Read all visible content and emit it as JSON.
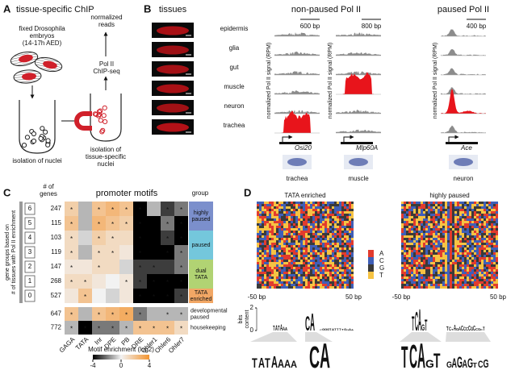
{
  "panelA": {
    "label": "A",
    "title": "tissue-specific ChIP",
    "embryos": [
      "fixed Drosophila",
      "embryos",
      "(14-17h AED)"
    ],
    "reads": [
      "normalized",
      "reads"
    ],
    "chip": [
      "Pol II",
      "ChIP-seq"
    ],
    "nuclei": "isolation of nuclei",
    "tissue_nuclei": [
      "isolation of",
      "tissue-specific",
      "nuclei"
    ]
  },
  "panelB": {
    "label": "B",
    "tissues_title": "tissues",
    "tissues": [
      "epidermis",
      "glia",
      "gut",
      "muscle",
      "neuron",
      "trachea"
    ],
    "headers": [
      "non-paused Pol II",
      "paused Pol II"
    ],
    "y_label": "normalized Pol II signal (RPM)",
    "loci": [
      {
        "scale": "600 bp",
        "gene": "Osi20",
        "tissue": "trachea",
        "paused": false
      },
      {
        "scale": "800 bp",
        "gene": "Mlp60A",
        "tissue": "muscle",
        "paused": false
      },
      {
        "scale": "400 bp",
        "gene": "Ace",
        "tissue": "neuron",
        "paused": true
      }
    ],
    "highlight_color": "#e8141b",
    "track_color": "#8c8c8c"
  },
  "panelC": {
    "label": "C",
    "genes_title": [
      "# of",
      "genes"
    ],
    "title": "promoter motifs",
    "group_title": "group",
    "side_label": [
      "gene groups based on",
      "# of tissues with Pol II enrichment"
    ],
    "columns": [
      "GAGA",
      "TATA",
      "Inr",
      "DPE",
      "PB",
      "DRE",
      "Ohler1",
      "Ohler6",
      "Ohler7"
    ],
    "rows": [
      {
        "tissues": 6,
        "genes": 247,
        "values": [
          1.5,
          -1,
          2,
          2.5,
          2,
          -4,
          -1,
          -3,
          -2
        ],
        "significant": [
          true,
          false,
          true,
          true,
          true,
          true,
          false,
          true,
          true
        ]
      },
      {
        "tissues": 5,
        "genes": 115,
        "values": [
          2,
          -1,
          2.5,
          2,
          1.5,
          -4,
          -4,
          -2,
          -4
        ],
        "significant": [
          true,
          false,
          true,
          true,
          true,
          true,
          false,
          true,
          true
        ]
      },
      {
        "tissues": 4,
        "genes": 103,
        "values": [
          1,
          -0.5,
          1.5,
          1,
          1,
          -4,
          -4,
          -3,
          -4
        ],
        "significant": [
          true,
          false,
          true,
          true,
          false,
          true,
          false,
          true,
          true
        ]
      },
      {
        "tissues": 3,
        "genes": 119,
        "values": [
          1,
          -1,
          1,
          1,
          0.5,
          -4,
          -4,
          -4,
          -2
        ],
        "significant": [
          true,
          false,
          true,
          true,
          false,
          true,
          false,
          true,
          true
        ]
      },
      {
        "tissues": 2,
        "genes": 147,
        "values": [
          0.5,
          0.5,
          1,
          1,
          -0.5,
          -3,
          -3,
          -3,
          -2
        ],
        "significant": [
          true,
          false,
          true,
          false,
          false,
          true,
          true,
          false,
          true
        ]
      },
      {
        "tissues": 1,
        "genes": 268,
        "values": [
          1,
          1,
          0.5,
          0,
          0.5,
          -3,
          -4,
          -4,
          -4
        ],
        "significant": [
          true,
          true,
          false,
          false,
          true,
          true,
          true,
          true,
          true
        ]
      },
      {
        "tissues": 0,
        "genes": 527,
        "values": [
          0.5,
          2,
          0,
          -0.5,
          0.5,
          -4,
          -4,
          -4,
          -3
        ],
        "significant": [
          false,
          true,
          false,
          false,
          false,
          true,
          true,
          true,
          true
        ]
      }
    ],
    "extra_rows": [
      {
        "genes": 647,
        "name": [
          "developmental",
          "paused"
        ],
        "values": [
          2,
          -1,
          2,
          2.5,
          3,
          -2,
          -1,
          -1,
          -1
        ],
        "significant": [
          true,
          false,
          true,
          true,
          true,
          true,
          false,
          true,
          true
        ]
      },
      {
        "genes": 772,
        "name": [
          "housekeeping"
        ],
        "values": [
          -1,
          -4,
          -2,
          -2,
          -1,
          2,
          2,
          2,
          1
        ],
        "significant": [
          true,
          true,
          true,
          true,
          true,
          true,
          true,
          true,
          true
        ]
      }
    ],
    "groups": [
      {
        "name": [
          "highly",
          "paused"
        ],
        "color": "#7b8fcc"
      },
      {
        "name": [
          "paused"
        ],
        "color": "#74c7dc"
      },
      {
        "name": [
          "dual",
          "TATA"
        ],
        "color": "#b1d373"
      },
      {
        "name": [
          "TATA",
          "enriched"
        ],
        "color": "#f2a765"
      }
    ],
    "significance_mark": "*",
    "colorbar": {
      "title": "Motif enrichment (log2)",
      "lim": [
        -4,
        4
      ],
      "ticks": [
        -4,
        0,
        4
      ],
      "colors": [
        "#000000",
        "#f2f2f2",
        "#f39430"
      ]
    }
  },
  "panelD": {
    "label": "D",
    "heatmaps": [
      {
        "title": "TATA enriched",
        "left": "-50 bp",
        "right": "50 bp"
      },
      {
        "title": "highly paused",
        "left": "-50 bp",
        "right": "50 bp"
      }
    ],
    "nucleotides": [
      "A",
      "C",
      "G",
      "T"
    ],
    "nucleotide_colors": [
      "#e23b2e",
      "#3f5fb8",
      "#3a3a3a",
      "#f6c343"
    ],
    "logo_axis": {
      "label": [
        "bits",
        "content"
      ],
      "ticks": [
        2,
        0
      ]
    }
  }
}
